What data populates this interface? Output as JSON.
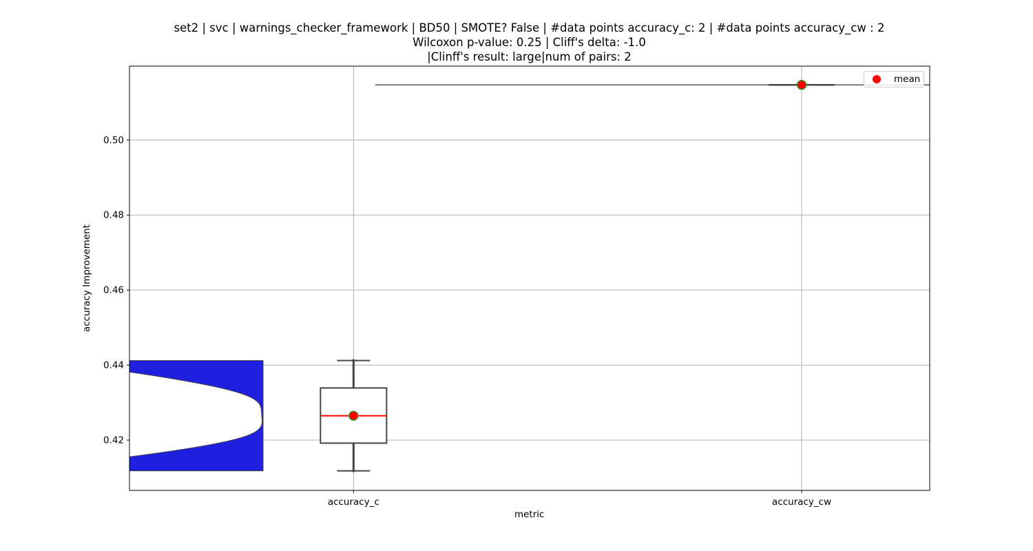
{
  "chart_data": {
    "type": "box",
    "title_lines": [
      "set2 | svc | warnings_checker_framework | BD50 | SMOTE? False | #data points accuracy_c: 2 | #data points accuracy_cw : 2",
      "Wilcoxon p-value: 0.25 | Cliff's delta: -1.0",
      "|Clinff's result: large|num of pairs: 2"
    ],
    "xlabel": "metric",
    "ylabel": "accuracy Improvement",
    "categories": [
      "accuracy_c",
      "accuracy_cw"
    ],
    "ylim": [
      0.4066,
      0.5197
    ],
    "yticks": [
      0.42,
      0.44,
      0.46,
      0.48,
      0.5
    ],
    "ytick_labels": [
      "0.42",
      "0.44",
      "0.46",
      "0.48",
      "0.50"
    ],
    "grid": true,
    "legend": {
      "placement": "top-right",
      "entries": [
        {
          "label": "mean",
          "color": "#ff0000"
        }
      ]
    },
    "boxes": [
      {
        "category": "accuracy_c",
        "min": 0.4118,
        "q1": 0.4192,
        "median": 0.4265,
        "q3": 0.4339,
        "max": 0.4412,
        "mean": 0.4265
      },
      {
        "category": "accuracy_cw",
        "min": 0.5147,
        "q1": 0.5147,
        "median": 0.5147,
        "q3": 0.5147,
        "max": 0.5147,
        "mean": 0.5147
      }
    ],
    "violins": [
      {
        "category": "accuracy_c",
        "min": 0.4118,
        "max": 0.4412,
        "center": 0.4265,
        "color": "#1f1fe0"
      },
      {
        "category": "accuracy_cw",
        "min": 0.5147,
        "max": 0.5147,
        "center": 0.5147,
        "color": "#1f1fe0"
      }
    ],
    "colors": {
      "violin": "#1f1fe0",
      "box_edge": "#444444",
      "median": "#ff0000",
      "mean_fill": "#ff0000",
      "mean_edge": "#2ca02c",
      "grid": "#b0b0b0"
    }
  }
}
